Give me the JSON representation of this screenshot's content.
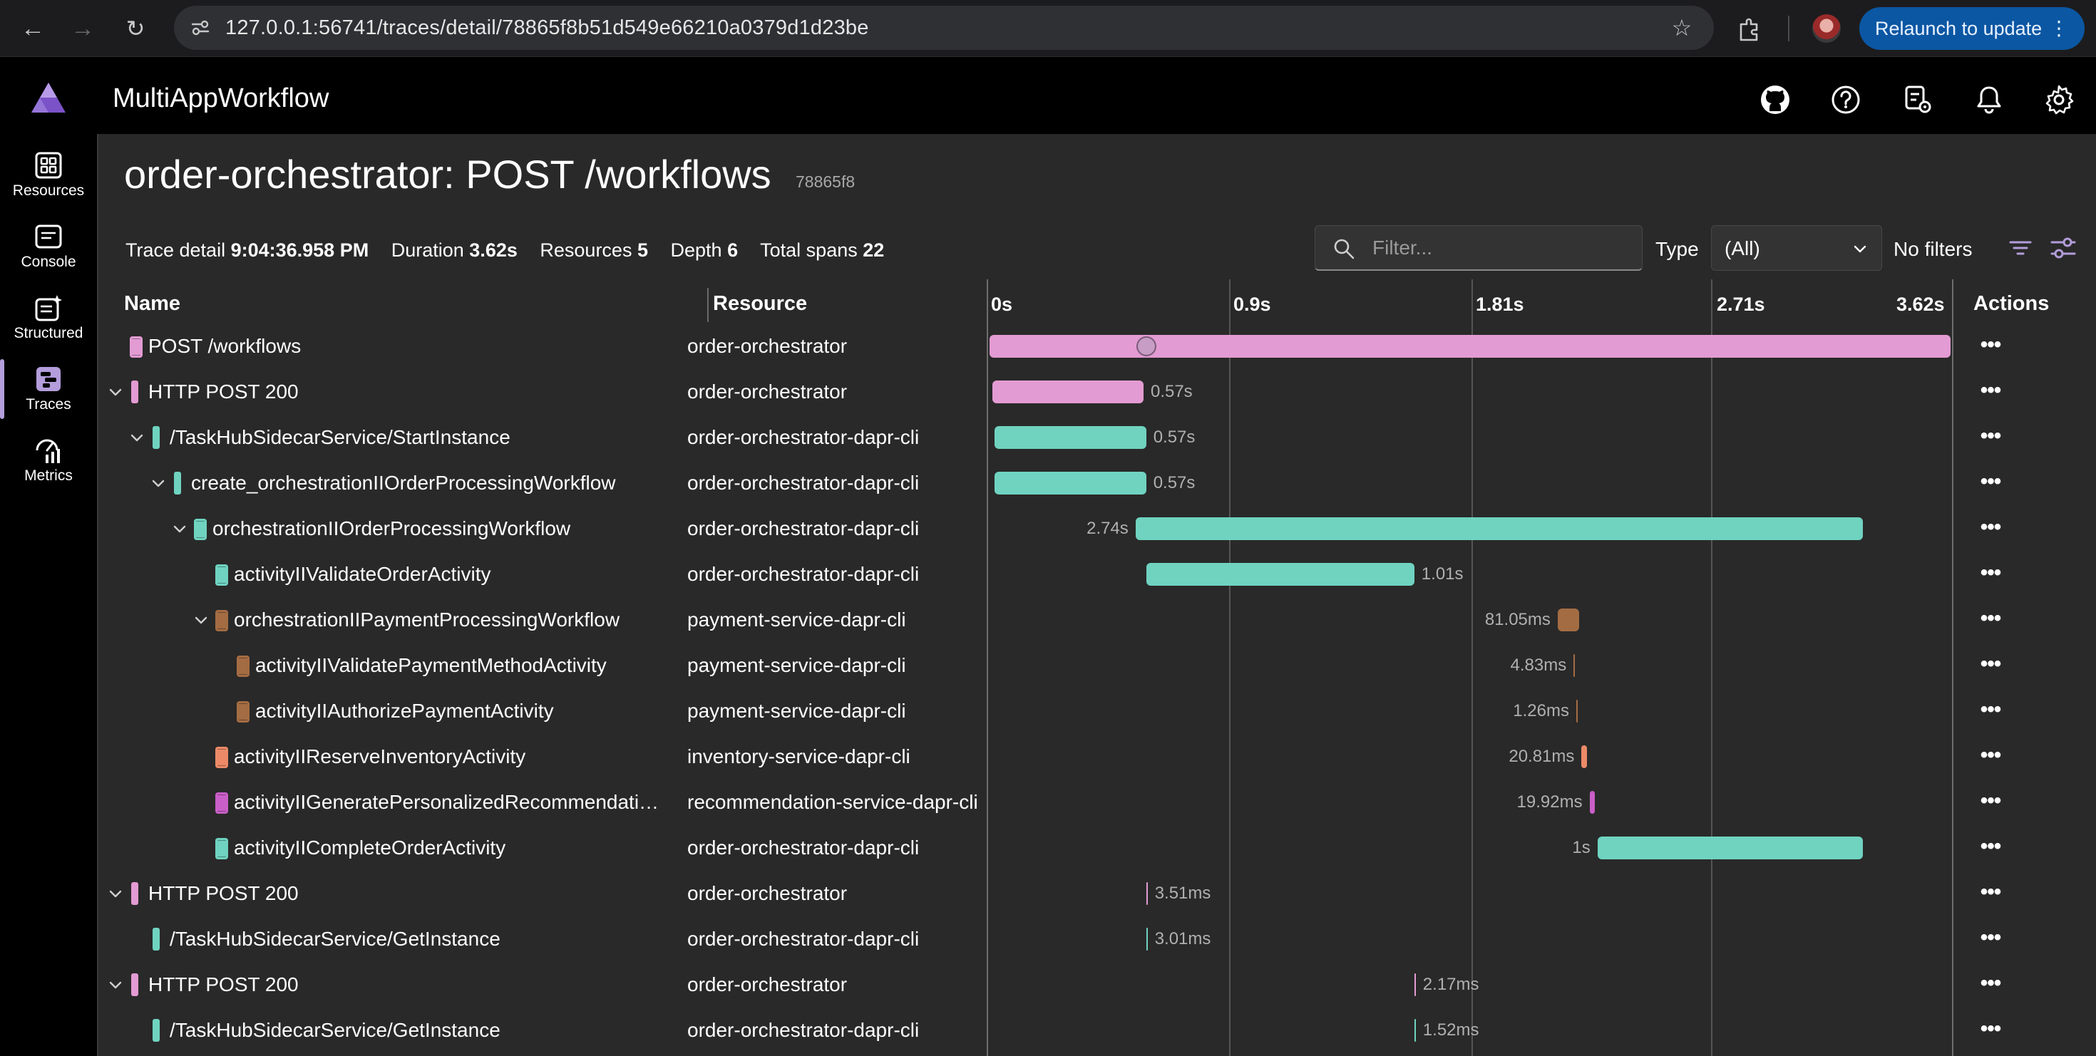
{
  "browser": {
    "url": "127.0.0.1:56741/traces/detail/78865f8b51d549e66210a0379d1d23be",
    "relaunch_label": "Relaunch to update"
  },
  "app": {
    "title": "MultiAppWorkflow"
  },
  "nav": {
    "items": [
      {
        "label": "Resources",
        "icon": "resources-icon"
      },
      {
        "label": "Console",
        "icon": "console-icon"
      },
      {
        "label": "Structured",
        "icon": "structured-icon"
      },
      {
        "label": "Traces",
        "icon": "traces-icon",
        "active": true
      },
      {
        "label": "Metrics",
        "icon": "metrics-icon"
      }
    ]
  },
  "page": {
    "title": "order-orchestrator: POST /workflows",
    "trace_id_short": "78865f8"
  },
  "summary": {
    "trace_detail_label": "Trace detail",
    "trace_detail_value": "9:04:36.958 PM",
    "duration_label": "Duration",
    "duration_value": "3.62s",
    "resources_label": "Resources",
    "resources_value": "5",
    "depth_label": "Depth",
    "depth_value": "6",
    "total_spans_label": "Total spans",
    "total_spans_value": "22"
  },
  "toolbar": {
    "filter_placeholder": "Filter...",
    "type_label": "Type",
    "type_value": "(All)",
    "no_filters_label": "No filters"
  },
  "grid": {
    "col_name": "Name",
    "col_resource": "Resource",
    "col_actions": "Actions",
    "ticks": [
      "0s",
      "0.9s",
      "1.81s",
      "2.71s",
      "3.62s"
    ],
    "total_duration_s": 3.62
  },
  "colors": {
    "orchestrator": "#e39bd3",
    "dapr_cli": "#6fd3c0",
    "payment": "#a46c43",
    "inventory": "#ec8a68",
    "recommendation": "#c95fc7"
  },
  "spans": [
    {
      "name": "POST /workflows",
      "resource": "order-orchestrator",
      "depth": 0,
      "expand": "none",
      "color": "orchestrator",
      "kind": "server",
      "start_s": 0.0,
      "dur_s": 3.62,
      "duration_label": ""
    },
    {
      "name": "HTTP POST 200",
      "resource": "order-orchestrator",
      "depth": 0,
      "expand": "expanded",
      "color": "orchestrator",
      "kind": "client",
      "start_s": 0.01,
      "dur_s": 0.57,
      "duration_label": "0.57s"
    },
    {
      "name": "/TaskHubSidecarService/StartInstance",
      "resource": "order-orchestrator-dapr-cli",
      "depth": 1,
      "expand": "expanded",
      "color": "dapr_cli",
      "kind": "client",
      "start_s": 0.02,
      "dur_s": 0.57,
      "duration_label": "0.57s"
    },
    {
      "name": "create_orchestrationIIOrderProcessingWorkflow",
      "resource": "order-orchestrator-dapr-cli",
      "depth": 2,
      "expand": "expanded",
      "color": "dapr_cli",
      "kind": "client",
      "start_s": 0.02,
      "dur_s": 0.57,
      "duration_label": "0.57s"
    },
    {
      "name": "orchestrationIIOrderProcessingWorkflow",
      "resource": "order-orchestrator-dapr-cli",
      "depth": 3,
      "expand": "expanded",
      "color": "dapr_cli",
      "kind": "server",
      "start_s": 0.55,
      "dur_s": 2.74,
      "duration_label": "2.74s",
      "label_left": true
    },
    {
      "name": "activityIIValidateOrderActivity",
      "resource": "order-orchestrator-dapr-cli",
      "depth": 4,
      "expand": "none",
      "color": "dapr_cli",
      "kind": "server",
      "start_s": 0.59,
      "dur_s": 1.01,
      "duration_label": "1.01s"
    },
    {
      "name": "orchestrationIIPaymentProcessingWorkflow",
      "resource": "payment-service-dapr-cli",
      "depth": 4,
      "expand": "expanded",
      "color": "payment",
      "kind": "server",
      "start_s": 2.14,
      "dur_s": 0.08105,
      "duration_label": "81.05ms",
      "label_left": true
    },
    {
      "name": "activityIIValidatePaymentMethodActivity",
      "resource": "payment-service-dapr-cli",
      "depth": 5,
      "expand": "none",
      "color": "payment",
      "kind": "server",
      "start_s": 2.2,
      "dur_s": 0.00483,
      "duration_label": "4.83ms",
      "label_left": true
    },
    {
      "name": "activityIIAuthorizePaymentActivity",
      "resource": "payment-service-dapr-cli",
      "depth": 5,
      "expand": "none",
      "color": "payment",
      "kind": "server",
      "start_s": 2.21,
      "dur_s": 0.00126,
      "duration_label": "1.26ms",
      "label_left": true
    },
    {
      "name": "activityIIReserveInventoryActivity",
      "resource": "inventory-service-dapr-cli",
      "depth": 4,
      "expand": "none",
      "color": "inventory",
      "kind": "server",
      "start_s": 2.23,
      "dur_s": 0.02081,
      "duration_label": "20.81ms",
      "label_left": true
    },
    {
      "name": "activityIIGeneratePersonalizedRecommendati…",
      "resource": "recommendation-service-dapr-cli",
      "depth": 4,
      "expand": "none",
      "color": "recommendation",
      "kind": "server",
      "start_s": 2.26,
      "dur_s": 0.01992,
      "duration_label": "19.92ms",
      "label_left": true
    },
    {
      "name": "activityIICompleteOrderActivity",
      "resource": "order-orchestrator-dapr-cli",
      "depth": 4,
      "expand": "none",
      "color": "dapr_cli",
      "kind": "server",
      "start_s": 2.29,
      "dur_s": 1.0,
      "duration_label": "1s",
      "label_left": true
    },
    {
      "name": "HTTP POST 200",
      "resource": "order-orchestrator",
      "depth": 0,
      "expand": "expanded",
      "color": "orchestrator",
      "kind": "client",
      "start_s": 0.59,
      "dur_s": 0.00351,
      "duration_label": "3.51ms"
    },
    {
      "name": "/TaskHubSidecarService/GetInstance",
      "resource": "order-orchestrator-dapr-cli",
      "depth": 1,
      "expand": "none",
      "color": "dapr_cli",
      "kind": "client",
      "start_s": 0.59,
      "dur_s": 0.00301,
      "duration_label": "3.01ms"
    },
    {
      "name": "HTTP POST 200",
      "resource": "order-orchestrator",
      "depth": 0,
      "expand": "expanded",
      "color": "orchestrator",
      "kind": "client",
      "start_s": 1.6,
      "dur_s": 0.00217,
      "duration_label": "2.17ms"
    },
    {
      "name": "/TaskHubSidecarService/GetInstance",
      "resource": "order-orchestrator-dapr-cli",
      "depth": 1,
      "expand": "none",
      "color": "dapr_cli",
      "kind": "client",
      "start_s": 1.6,
      "dur_s": 0.00152,
      "duration_label": "1.52ms"
    }
  ]
}
